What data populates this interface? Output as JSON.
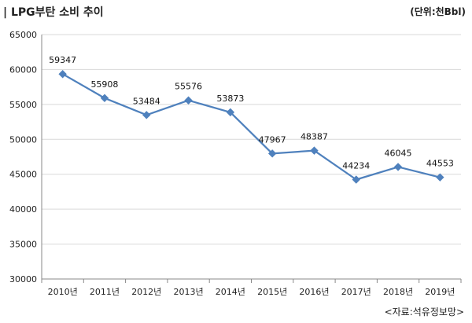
{
  "header": {
    "title": "| LPG부탄 소비 추이",
    "unit": "(단위:천Bbl)"
  },
  "footer": {
    "source": "<자료:석유정보망>"
  },
  "chart_data": {
    "type": "line",
    "title": "LPG부탄 소비 추이",
    "xlabel": "",
    "ylabel": "",
    "categories": [
      "2010년",
      "2011년",
      "2012년",
      "2013년",
      "2014년",
      "2015년",
      "2016년",
      "2017년",
      "2018년",
      "2019년"
    ],
    "series": [
      {
        "values": [
          59347,
          55908,
          53484,
          55576,
          53873,
          47967,
          48387,
          44234,
          46045,
          44553
        ]
      }
    ],
    "ylim": [
      30000,
      65000
    ],
    "yticks": [
      30000,
      35000,
      40000,
      45000,
      50000,
      55000,
      60000,
      65000
    ],
    "grid": true,
    "line_color": "#4f81bd"
  }
}
